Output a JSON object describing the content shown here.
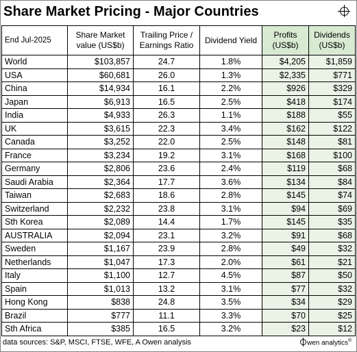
{
  "title": "Share Market Pricing - Major Countries",
  "headers": {
    "period": "End Jul-2025",
    "market_value_line1": "Share Market",
    "market_value_line2": "value (US$b)",
    "pe_line1": "Trailing Price /",
    "pe_line2": "Earnings Ratio",
    "yield": "Dividend Yield",
    "profits_line1": "Profits",
    "profits_line2": "(US$b)",
    "dividends_line1": "Dividends",
    "dividends_line2": "(US$b)"
  },
  "rows": [
    {
      "country": "World",
      "value": "$103,857",
      "pe": "24.7",
      "yield": "1.8%",
      "profits": "$4,205",
      "dividends": "$1,859"
    },
    {
      "country": "USA",
      "value": "$60,681",
      "pe": "26.0",
      "yield": "1.3%",
      "profits": "$2,335",
      "dividends": "$771"
    },
    {
      "country": "China",
      "value": "$14,934",
      "pe": "16.1",
      "yield": "2.2%",
      "profits": "$926",
      "dividends": "$329"
    },
    {
      "country": "Japan",
      "value": "$6,913",
      "pe": "16.5",
      "yield": "2.5%",
      "profits": "$418",
      "dividends": "$174"
    },
    {
      "country": "India",
      "value": "$4,933",
      "pe": "26.3",
      "yield": "1.1%",
      "profits": "$188",
      "dividends": "$55"
    },
    {
      "country": "UK",
      "value": "$3,615",
      "pe": "22.3",
      "yield": "3.4%",
      "profits": "$162",
      "dividends": "$122"
    },
    {
      "country": "Canada",
      "value": "$3,252",
      "pe": "22.0",
      "yield": "2.5%",
      "profits": "$148",
      "dividends": "$81"
    },
    {
      "country": "France",
      "value": "$3,234",
      "pe": "19.2",
      "yield": "3.1%",
      "profits": "$168",
      "dividends": "$100"
    },
    {
      "country": "Germany",
      "value": "$2,806",
      "pe": "23.6",
      "yield": "2.4%",
      "profits": "$119",
      "dividends": "$68"
    },
    {
      "country": "Saudi Arabia",
      "value": "$2,364",
      "pe": "17.7",
      "yield": "3.6%",
      "profits": "$134",
      "dividends": "$84"
    },
    {
      "country": "Taiwan",
      "value": "$2,683",
      "pe": "18.6",
      "yield": "2.8%",
      "profits": "$145",
      "dividends": "$74"
    },
    {
      "country": "Switzerland",
      "value": "$2,232",
      "pe": "23.8",
      "yield": "3.1%",
      "profits": "$94",
      "dividends": "$69"
    },
    {
      "country": "Sth Korea",
      "value": "$2,089",
      "pe": "14.4",
      "yield": "1.7%",
      "profits": "$145",
      "dividends": "$35"
    },
    {
      "country": "AUSTRALIA",
      "value": "$2,094",
      "pe": "23.1",
      "yield": "3.2%",
      "profits": "$91",
      "dividends": "$68"
    },
    {
      "country": "Sweden",
      "value": "$1,167",
      "pe": "23.9",
      "yield": "2.8%",
      "profits": "$49",
      "dividends": "$32"
    },
    {
      "country": "Netherlands",
      "value": "$1,047",
      "pe": "17.3",
      "yield": "2.0%",
      "profits": "$61",
      "dividends": "$21"
    },
    {
      "country": "Italy",
      "value": "$1,100",
      "pe": "12.7",
      "yield": "4.5%",
      "profits": "$87",
      "dividends": "$50"
    },
    {
      "country": "Spain",
      "value": "$1,013",
      "pe": "13.2",
      "yield": "3.1%",
      "profits": "$77",
      "dividends": "$32"
    },
    {
      "country": "Hong Kong",
      "value": "$838",
      "pe": "24.8",
      "yield": "3.5%",
      "profits": "$34",
      "dividends": "$29"
    },
    {
      "country": "Brazil",
      "value": "$777",
      "pe": "11.1",
      "yield": "3.3%",
      "profits": "$70",
      "dividends": "$25"
    },
    {
      "country": "Sth Africa",
      "value": "$385",
      "pe": "16.5",
      "yield": "3.2%",
      "profits": "$23",
      "dividends": "$12"
    }
  ],
  "footer": "data sources: S&P, MSCI, FTSE, WFE, A Owen analysis",
  "brand": "wen analytics",
  "brand_mark": "®",
  "logo_icon": "crosshair-circle-icon",
  "colors": {
    "header_green": "#d9ead3",
    "cell_green": "#ebf3e6"
  }
}
